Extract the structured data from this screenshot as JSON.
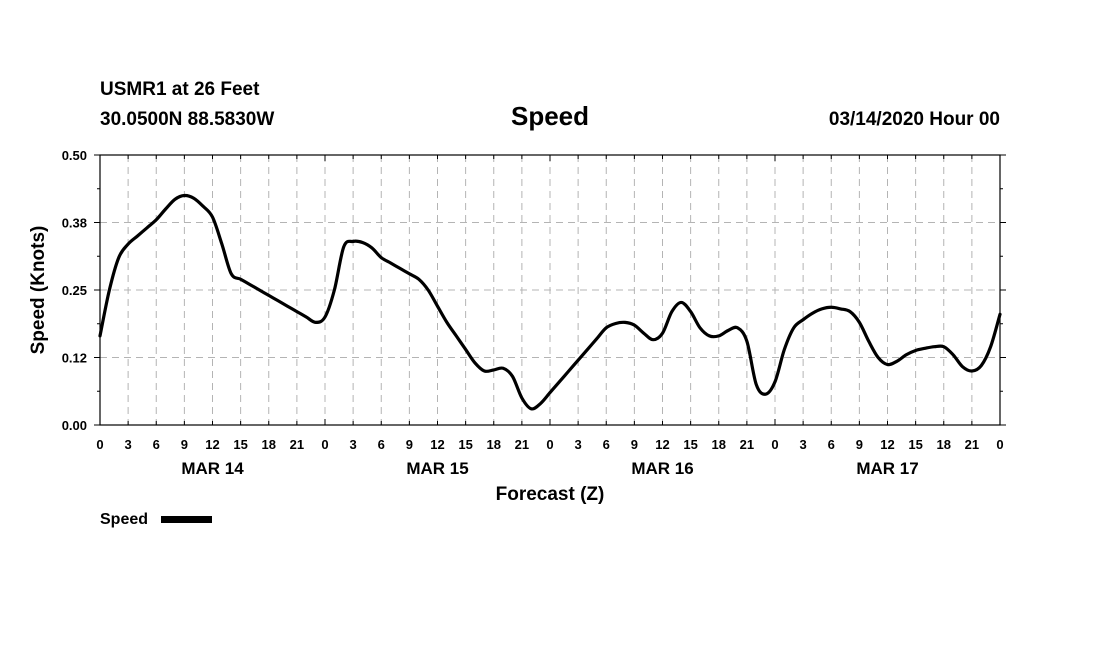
{
  "header": {
    "station": "USMR1 at 26 Feet",
    "location": "30.0500N 88.5830W",
    "datetime": "03/14/2020 Hour 00"
  },
  "colors": {
    "line": "#000000",
    "grid": "#b4b4b4",
    "background": "#ffffff"
  },
  "chart_data": {
    "type": "line",
    "title": "Speed",
    "xlabel": "Forecast (Z)",
    "ylabel": "Speed (Knots)",
    "xlim": [
      0,
      96
    ],
    "ylim": [
      0,
      0.5
    ],
    "grid": true,
    "legend": {
      "label": "Speed",
      "placement": "bottom-left"
    },
    "y_ticks": [
      {
        "value": 0.0,
        "label": "0.00"
      },
      {
        "value": 0.125,
        "label": "0.12"
      },
      {
        "value": 0.25,
        "label": "0.25"
      },
      {
        "value": 0.375,
        "label": "0.38"
      },
      {
        "value": 0.5,
        "label": "0.50"
      }
    ],
    "x_tick_labels": [
      "0",
      "3",
      "6",
      "9",
      "12",
      "15",
      "18",
      "21",
      "0",
      "3",
      "6",
      "9",
      "12",
      "15",
      "18",
      "21",
      "0",
      "3",
      "6",
      "9",
      "12",
      "15",
      "18",
      "21",
      "0",
      "3",
      "6",
      "9",
      "12",
      "15",
      "18",
      "21",
      "0"
    ],
    "day_labels": [
      {
        "hour": 12,
        "label": "MAR 14"
      },
      {
        "hour": 36,
        "label": "MAR 15"
      },
      {
        "hour": 60,
        "label": "MAR 16"
      },
      {
        "hour": 84,
        "label": "MAR 17"
      }
    ],
    "series": [
      {
        "name": "Speed",
        "x": [
          0,
          1,
          2,
          3,
          4,
          5,
          6,
          7,
          8,
          9,
          10,
          11,
          12,
          13,
          14,
          15,
          16,
          17,
          18,
          19,
          20,
          21,
          22,
          23,
          24,
          25,
          26,
          27,
          28,
          29,
          30,
          31,
          32,
          33,
          34,
          35,
          36,
          37,
          38,
          39,
          40,
          41,
          42,
          43,
          44,
          45,
          46,
          47,
          48,
          49,
          50,
          51,
          52,
          53,
          54,
          55,
          56,
          57,
          58,
          59,
          60,
          61,
          62,
          63,
          64,
          65,
          66,
          67,
          68,
          69,
          70,
          71,
          72,
          73,
          74,
          75,
          76,
          77,
          78,
          79,
          80,
          81,
          82,
          83,
          84,
          85,
          86,
          87,
          88,
          89,
          90,
          91,
          92,
          93,
          94,
          95,
          96
        ],
        "values": [
          0.165,
          0.25,
          0.31,
          0.335,
          0.35,
          0.365,
          0.38,
          0.4,
          0.418,
          0.425,
          0.42,
          0.405,
          0.385,
          0.335,
          0.28,
          0.27,
          0.26,
          0.25,
          0.24,
          0.23,
          0.22,
          0.21,
          0.2,
          0.19,
          0.2,
          0.25,
          0.33,
          0.34,
          0.338,
          0.328,
          0.31,
          0.3,
          0.29,
          0.28,
          0.27,
          0.25,
          0.22,
          0.19,
          0.165,
          0.14,
          0.115,
          0.1,
          0.102,
          0.105,
          0.09,
          0.05,
          0.03,
          0.04,
          0.06,
          0.08,
          0.1,
          0.12,
          0.14,
          0.16,
          0.18,
          0.188,
          0.19,
          0.185,
          0.17,
          0.158,
          0.17,
          0.21,
          0.227,
          0.21,
          0.18,
          0.165,
          0.165,
          0.175,
          0.18,
          0.155,
          0.075,
          0.057,
          0.08,
          0.14,
          0.18,
          0.195,
          0.207,
          0.215,
          0.218,
          0.215,
          0.21,
          0.19,
          0.155,
          0.125,
          0.112,
          0.118,
          0.13,
          0.138,
          0.142,
          0.145,
          0.145,
          0.13,
          0.108,
          0.1,
          0.11,
          0.145,
          0.205
        ]
      }
    ]
  }
}
